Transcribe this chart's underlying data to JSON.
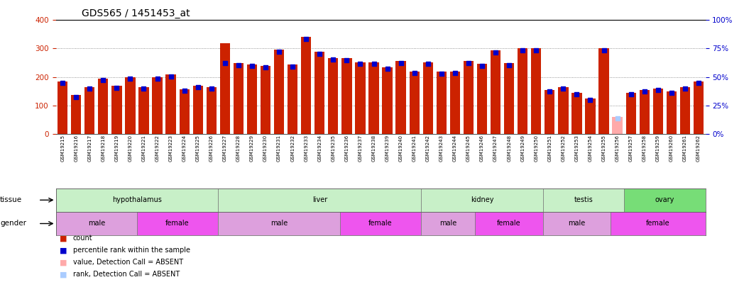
{
  "title": "GDS565 / 1451453_at",
  "samples": [
    "GSM19215",
    "GSM19216",
    "GSM19217",
    "GSM19218",
    "GSM19219",
    "GSM19220",
    "GSM19221",
    "GSM19222",
    "GSM19223",
    "GSM19224",
    "GSM19225",
    "GSM19226",
    "GSM19227",
    "GSM19228",
    "GSM19229",
    "GSM19230",
    "GSM19231",
    "GSM19232",
    "GSM19233",
    "GSM19234",
    "GSM19235",
    "GSM19236",
    "GSM19237",
    "GSM19238",
    "GSM19239",
    "GSM19240",
    "GSM19241",
    "GSM19242",
    "GSM19243",
    "GSM19244",
    "GSM19245",
    "GSM19246",
    "GSM19247",
    "GSM19248",
    "GSM19249",
    "GSM19250",
    "GSM19251",
    "GSM19252",
    "GSM19253",
    "GSM19254",
    "GSM19255",
    "GSM19256",
    "GSM19257",
    "GSM19258",
    "GSM19259",
    "GSM19260",
    "GSM19261",
    "GSM19262"
  ],
  "count_values": [
    185,
    137,
    163,
    195,
    168,
    200,
    165,
    200,
    208,
    157,
    170,
    165,
    318,
    248,
    244,
    240,
    295,
    244,
    340,
    288,
    265,
    265,
    252,
    252,
    235,
    255,
    220,
    252,
    218,
    220,
    255,
    245,
    293,
    248,
    300,
    300,
    155,
    165,
    145,
    125,
    300,
    60,
    145,
    155,
    160,
    150,
    165,
    185
  ],
  "percentile_values": [
    178,
    130,
    158,
    188,
    162,
    195,
    160,
    193,
    202,
    152,
    165,
    160,
    248,
    242,
    238,
    233,
    288,
    237,
    333,
    282,
    260,
    258,
    246,
    246,
    228,
    248,
    213,
    246,
    212,
    214,
    248,
    238,
    287,
    242,
    294,
    294,
    148,
    158,
    138,
    118,
    293,
    55,
    138,
    148,
    154,
    143,
    158,
    178
  ],
  "absent_count": [
    false,
    false,
    false,
    false,
    false,
    false,
    false,
    false,
    false,
    false,
    false,
    false,
    false,
    false,
    false,
    false,
    false,
    false,
    false,
    false,
    false,
    false,
    false,
    false,
    false,
    false,
    false,
    false,
    false,
    false,
    false,
    false,
    false,
    false,
    false,
    false,
    false,
    false,
    false,
    false,
    false,
    true,
    false,
    false,
    false,
    false,
    false,
    false
  ],
  "absent_rank": [
    false,
    false,
    false,
    false,
    false,
    false,
    false,
    false,
    false,
    false,
    false,
    false,
    false,
    false,
    false,
    false,
    false,
    false,
    false,
    false,
    false,
    false,
    false,
    false,
    false,
    false,
    false,
    false,
    false,
    false,
    false,
    false,
    false,
    false,
    false,
    false,
    false,
    false,
    false,
    false,
    false,
    true,
    false,
    false,
    false,
    false,
    false,
    false
  ],
  "tissues": [
    {
      "label": "hypothalamus",
      "start": 0,
      "end": 12,
      "color": "#c8f0c8"
    },
    {
      "label": "liver",
      "start": 12,
      "end": 27,
      "color": "#c8f0c8"
    },
    {
      "label": "kidney",
      "start": 27,
      "end": 36,
      "color": "#c8f0c8"
    },
    {
      "label": "testis",
      "start": 36,
      "end": 42,
      "color": "#c8f0c8"
    },
    {
      "label": "ovary",
      "start": 42,
      "end": 48,
      "color": "#77dd77"
    }
  ],
  "genders": [
    {
      "label": "male",
      "start": 0,
      "end": 6,
      "color": "#dda0dd"
    },
    {
      "label": "female",
      "start": 6,
      "end": 12,
      "color": "#ee55ee"
    },
    {
      "label": "male",
      "start": 12,
      "end": 21,
      "color": "#dda0dd"
    },
    {
      "label": "female",
      "start": 21,
      "end": 27,
      "color": "#ee55ee"
    },
    {
      "label": "male",
      "start": 27,
      "end": 31,
      "color": "#dda0dd"
    },
    {
      "label": "female",
      "start": 31,
      "end": 36,
      "color": "#ee55ee"
    },
    {
      "label": "male",
      "start": 36,
      "end": 41,
      "color": "#dda0dd"
    },
    {
      "label": "female",
      "start": 41,
      "end": 48,
      "color": "#ee55ee"
    }
  ],
  "bar_color": "#cc2200",
  "blue_color": "#0000cc",
  "absent_bar_color": "#ffaaaa",
  "absent_rank_color": "#aaccff",
  "ylim_left": [
    0,
    400
  ],
  "ylim_right": [
    0,
    100
  ],
  "yticks_left": [
    0,
    100,
    200,
    300,
    400
  ],
  "yticks_right": [
    0,
    25,
    50,
    75,
    100
  ],
  "left_axis_color": "#cc2200",
  "right_axis_color": "#0000cc",
  "background_color": "#ffffff",
  "legend_items": [
    {
      "label": "count",
      "color": "#cc2200"
    },
    {
      "label": "percentile rank within the sample",
      "color": "#0000cc"
    },
    {
      "label": "value, Detection Call = ABSENT",
      "color": "#ffaaaa"
    },
    {
      "label": "rank, Detection Call = ABSENT",
      "color": "#aaccff"
    }
  ]
}
